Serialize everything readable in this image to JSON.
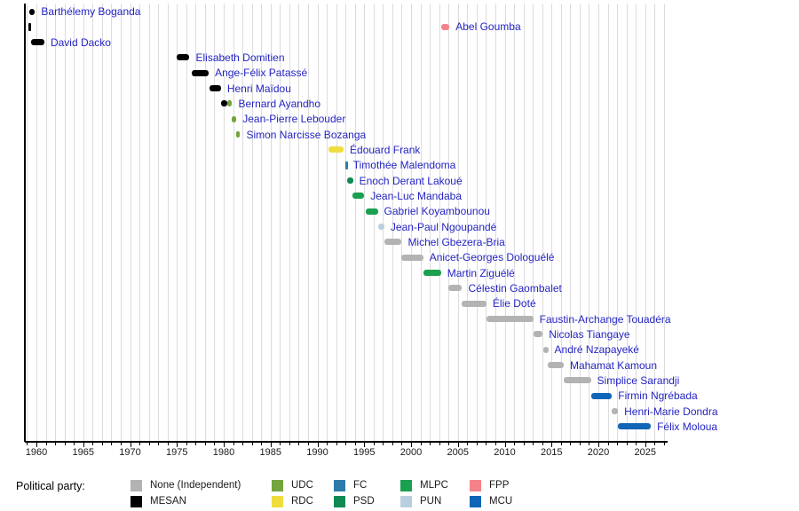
{
  "legend": {
    "title": "Political party:",
    "columns": [
      [
        "none",
        "mesan"
      ],
      [
        "udc",
        "rdc"
      ],
      [
        "fc",
        "psd"
      ],
      [
        "mlpc",
        "pun"
      ],
      [
        "fpp",
        "mcu"
      ]
    ]
  },
  "chart_data": {
    "type": "gantt",
    "title": "",
    "x_axis": {
      "min": 1958.6,
      "max": 2027.4,
      "major_ticks": [
        1960,
        1965,
        1970,
        1975,
        1980,
        1985,
        1990,
        1995,
        2000,
        2005,
        2010,
        2015,
        2020,
        2025
      ],
      "minor_tick_step": 1,
      "grid": true
    },
    "parties": [
      {
        "id": "none",
        "label": "None (Independent)",
        "color": "#b3b3b3"
      },
      {
        "id": "mesan",
        "label": "MESAN",
        "color": "#000000"
      },
      {
        "id": "udc",
        "label": "UDC",
        "color": "#73a43d"
      },
      {
        "id": "rdc",
        "label": "RDC",
        "color": "#eedd3d"
      },
      {
        "id": "fc",
        "label": "FC",
        "color": "#2c7caa"
      },
      {
        "id": "psd",
        "label": "PSD",
        "color": "#0f8a55"
      },
      {
        "id": "mlpc",
        "label": "MLPC",
        "color": "#1aa04f"
      },
      {
        "id": "pun",
        "label": "PUN",
        "color": "#b9cfdf"
      },
      {
        "id": "fpp",
        "label": "FPP",
        "color": "#f4828b"
      },
      {
        "id": "mcu",
        "label": "MCU",
        "color": "#1065b6"
      }
    ],
    "people": [
      {
        "name": "Barthélemy Boganda",
        "segments": [
          {
            "start": 1959.2,
            "end": 1959.85,
            "party": "mesan"
          }
        ]
      },
      {
        "name": "Abel Goumba",
        "segments": [
          {
            "start": 1959.1,
            "end": 1959.35,
            "party": "mesan"
          },
          {
            "start": 2003.2,
            "end": 2004.1,
            "party": "fpp"
          }
        ]
      },
      {
        "name": "David Dacko",
        "segments": [
          {
            "start": 1959.45,
            "end": 1960.85,
            "party": "mesan"
          }
        ]
      },
      {
        "name": "Elisabeth Domitien",
        "segments": [
          {
            "start": 1975.0,
            "end": 1976.35,
            "party": "mesan"
          }
        ]
      },
      {
        "name": "Ange-Félix Patassé",
        "segments": [
          {
            "start": 1976.6,
            "end": 1978.4,
            "party": "mesan"
          }
        ]
      },
      {
        "name": "Henri Maïdou",
        "segments": [
          {
            "start": 1978.5,
            "end": 1979.7,
            "party": "mesan"
          }
        ]
      },
      {
        "name": "Bernard Ayandho",
        "segments": [
          {
            "start": 1979.75,
            "end": 1980.35,
            "party": "mesan"
          },
          {
            "start": 1980.35,
            "end": 1980.9,
            "party": "udc"
          }
        ]
      },
      {
        "name": "Jean-Pierre Lebouder",
        "segments": [
          {
            "start": 1980.85,
            "end": 1981.35,
            "party": "udc"
          }
        ]
      },
      {
        "name": "Simon Narcisse Bozanga",
        "segments": [
          {
            "start": 1981.3,
            "end": 1981.75,
            "party": "udc"
          }
        ]
      },
      {
        "name": "Édouard Frank",
        "segments": [
          {
            "start": 1991.2,
            "end": 1992.8,
            "party": "rdc"
          }
        ]
      },
      {
        "name": "Timothée Malendoma",
        "segments": [
          {
            "start": 1992.95,
            "end": 1993.15,
            "party": "fc"
          }
        ]
      },
      {
        "name": "Enoch Derant Lakoué",
        "segments": [
          {
            "start": 1993.15,
            "end": 1993.8,
            "party": "psd"
          }
        ]
      },
      {
        "name": "Jean-Luc Mandaba",
        "segments": [
          {
            "start": 1993.75,
            "end": 1995.0,
            "party": "mlpc"
          }
        ]
      },
      {
        "name": "Gabriel Koyambounou",
        "segments": [
          {
            "start": 1995.2,
            "end": 1996.45,
            "party": "mlpc"
          }
        ]
      },
      {
        "name": "Jean-Paul Ngoupandé",
        "segments": [
          {
            "start": 1996.5,
            "end": 1997.15,
            "party": "pun"
          }
        ]
      },
      {
        "name": "Michel Gbezera-Bria",
        "segments": [
          {
            "start": 1997.2,
            "end": 1999.0,
            "party": "none"
          }
        ]
      },
      {
        "name": "Anicet-Georges Dologuélé",
        "segments": [
          {
            "start": 1999.0,
            "end": 2001.3,
            "party": "none"
          }
        ]
      },
      {
        "name": "Martin Ziguélé",
        "segments": [
          {
            "start": 2001.3,
            "end": 2003.2,
            "party": "mlpc"
          }
        ]
      },
      {
        "name": "Célestin Gaombalet",
        "segments": [
          {
            "start": 2003.95,
            "end": 2005.45,
            "party": "none"
          }
        ]
      },
      {
        "name": "Élie Doté",
        "segments": [
          {
            "start": 2005.45,
            "end": 2008.05,
            "party": "none"
          }
        ]
      },
      {
        "name": "Faustin-Archange Touadéra",
        "segments": [
          {
            "start": 2008.05,
            "end": 2013.05,
            "party": "none"
          }
        ]
      },
      {
        "name": "Nicolas Tiangaye",
        "segments": [
          {
            "start": 2013.05,
            "end": 2014.05,
            "party": "none"
          }
        ]
      },
      {
        "name": "André Nzapayeké",
        "segments": [
          {
            "start": 2014.1,
            "end": 2014.65,
            "party": "none"
          }
        ]
      },
      {
        "name": "Mahamat Kamoun",
        "segments": [
          {
            "start": 2014.6,
            "end": 2016.3,
            "party": "none"
          }
        ]
      },
      {
        "name": "Simplice Sarandji",
        "segments": [
          {
            "start": 2016.3,
            "end": 2019.2,
            "party": "none"
          }
        ]
      },
      {
        "name": "Firmin Ngrébada",
        "segments": [
          {
            "start": 2019.2,
            "end": 2021.45,
            "party": "mcu"
          }
        ]
      },
      {
        "name": "Henri-Marie Dondra",
        "segments": [
          {
            "start": 2021.45,
            "end": 2022.1,
            "party": "none"
          }
        ]
      },
      {
        "name": "Félix Moloua",
        "segments": [
          {
            "start": 2022.1,
            "end": 2025.6,
            "party": "mcu"
          }
        ]
      }
    ]
  }
}
